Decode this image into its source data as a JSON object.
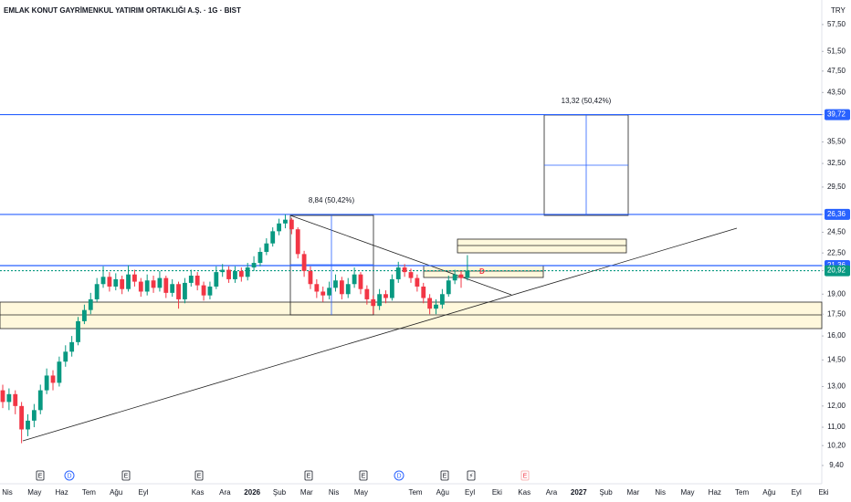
{
  "chart_data": {
    "type": "candlestick",
    "title": "EMLAK KONUT GAYRİMENKUL YATIRIM ORTAKLIĞI A.Ş. · 1G · BIST",
    "currency": "TRY",
    "log": true,
    "ylim": [
      8.72,
      63.6
    ],
    "yticks": [
      {
        "value": 57.5,
        "label": "57,50"
      },
      {
        "value": 51.5,
        "label": "51,50"
      },
      {
        "value": 47.5,
        "label": "47,50"
      },
      {
        "value": 43.5,
        "label": "43,50"
      },
      {
        "value": 39.72,
        "label": "39,72",
        "color": "#2962ff"
      },
      {
        "value": 35.5,
        "label": "35,50"
      },
      {
        "value": 32.5,
        "label": "32,50"
      },
      {
        "value": 29.5,
        "label": "29,50"
      },
      {
        "value": 26.36,
        "label": "26,36",
        "color": "#2962ff"
      },
      {
        "value": 24.5,
        "label": "24,50"
      },
      {
        "value": 22.5,
        "label": "22,50"
      },
      {
        "value": 21.36,
        "label": "21,36",
        "color": "#2962ff"
      },
      {
        "value": 20.92,
        "label": "20,92",
        "color": "#089981"
      },
      {
        "value": 19,
        "label": "19,00"
      },
      {
        "value": 17.5,
        "label": "17,50"
      },
      {
        "value": 16,
        "label": "16,00"
      },
      {
        "value": 14.5,
        "label": "14,50"
      },
      {
        "value": 13,
        "label": "13,00"
      },
      {
        "value": 12,
        "label": "12,00"
      },
      {
        "value": 11,
        "label": "11,00"
      },
      {
        "value": 10.2,
        "label": "10,20"
      },
      {
        "value": 9.4,
        "label": "9,40"
      }
    ],
    "categories": [
      "Nis",
      "May",
      "Haz",
      "Tem",
      "Ağu",
      "Eyl",
      null,
      "Kas",
      "Ara",
      "2026",
      "Şub",
      "Mar",
      "Nis",
      "May",
      null,
      "Tem",
      "Ağu",
      "Eyl",
      "Eki",
      "Kas",
      "Ara",
      "2027",
      "Şub",
      "Mar",
      "Nis",
      "May",
      "Haz",
      "Tem",
      "Ağu",
      "Eyl",
      "Eki"
    ],
    "up_color": "#089981",
    "down_color": "#f23645",
    "open": [
      12.8,
      12.2,
      12.6,
      12.0,
      10.9,
      11.3,
      11.8,
      12.8,
      13.6,
      13.2,
      14.4,
      15.0,
      15.6,
      17.0,
      17.8,
      18.6,
      19.8,
      20.4,
      19.6,
      20.2,
      19.4,
      20.6,
      20.0,
      19.2,
      20.1,
      19.5,
      20.3,
      19.1,
      19.8,
      18.6,
      19.9,
      20.5,
      19.7,
      18.9,
      19.6,
      20.8,
      21.0,
      20.2,
      20.9,
      20.4,
      21.2,
      21.6,
      22.6,
      23.4,
      24.6,
      25.4,
      25.8,
      24.8,
      22.4,
      20.9,
      19.8,
      19.2,
      18.9,
      19.5,
      20.1,
      19.0,
      19.8,
      20.6,
      19.4,
      18.6,
      18.1,
      19.0,
      18.7,
      20.2,
      21.2,
      20.8,
      20.3,
      19.6,
      18.7,
      17.9,
      18.2,
      19.0,
      20.1,
      20.6,
      20.3
    ],
    "high": [
      13.1,
      12.9,
      12.8,
      12.2,
      11.6,
      12.1,
      13.1,
      14.0,
      13.9,
      14.7,
      15.4,
      16.0,
      17.3,
      18.2,
      19.1,
      20.3,
      21.3,
      20.8,
      20.7,
      20.5,
      21.4,
      21.0,
      20.3,
      20.6,
      20.5,
      20.9,
      20.5,
      20.2,
      20.0,
      20.3,
      21.0,
      20.8,
      20.0,
      20.0,
      21.3,
      21.5,
      21.3,
      21.3,
      21.2,
      21.6,
      22.2,
      23.0,
      23.9,
      25.0,
      25.9,
      26.36,
      26.0,
      25.0,
      22.7,
      21.3,
      20.2,
      19.6,
      20.0,
      20.6,
      20.4,
      20.3,
      21.2,
      20.8,
      19.7,
      18.9,
      19.4,
      19.3,
      20.6,
      21.7,
      21.5,
      21.1,
      20.6,
      19.9,
      19.0,
      18.6,
      19.4,
      20.5,
      21.0,
      20.9,
      22.3
    ],
    "low": [
      11.9,
      11.8,
      11.6,
      10.3,
      10.6,
      11.0,
      11.6,
      12.6,
      12.8,
      13.0,
      14.1,
      14.7,
      15.4,
      16.8,
      17.5,
      18.4,
      19.5,
      19.2,
      19.3,
      19.0,
      19.2,
      19.6,
      18.8,
      18.9,
      19.1,
      19.2,
      18.7,
      18.8,
      17.9,
      18.3,
      19.6,
      19.3,
      18.5,
      18.6,
      19.4,
      20.4,
      19.9,
      19.9,
      20.0,
      20.1,
      20.9,
      21.3,
      22.3,
      23.1,
      24.2,
      24.9,
      24.3,
      22.0,
      20.4,
      19.4,
      18.7,
      18.4,
      18.6,
      19.2,
      18.6,
      18.7,
      19.5,
      19.0,
      18.2,
      17.5,
      17.8,
      18.3,
      18.5,
      19.9,
      20.4,
      19.9,
      19.2,
      18.3,
      17.5,
      17.5,
      17.9,
      18.8,
      19.8,
      19.5,
      20.1
    ],
    "close": [
      12.2,
      12.6,
      12.0,
      10.9,
      11.3,
      11.8,
      12.8,
      13.6,
      13.2,
      14.4,
      15.0,
      15.6,
      17.0,
      17.8,
      18.6,
      19.8,
      20.4,
      19.6,
      20.2,
      19.4,
      20.6,
      20.0,
      19.2,
      20.1,
      19.5,
      20.3,
      19.1,
      19.8,
      18.6,
      19.9,
      20.5,
      19.7,
      18.9,
      19.6,
      20.8,
      21.0,
      20.2,
      20.9,
      20.4,
      21.2,
      21.6,
      22.6,
      23.4,
      24.6,
      25.4,
      25.8,
      24.8,
      22.4,
      20.9,
      19.8,
      19.2,
      18.9,
      19.5,
      20.1,
      19.0,
      19.8,
      20.6,
      19.4,
      18.6,
      18.1,
      19.0,
      18.7,
      20.2,
      21.2,
      20.8,
      20.3,
      19.6,
      18.7,
      17.9,
      18.2,
      19.0,
      20.1,
      20.6,
      20.3,
      20.92
    ],
    "annotations": [
      "13,32 (50,42%)",
      "8,84 (50,42%)",
      "D"
    ],
    "event_markers": [
      "E",
      "D",
      "E",
      "E",
      "E",
      "E",
      "D",
      "E",
      "⚡",
      "E"
    ]
  }
}
